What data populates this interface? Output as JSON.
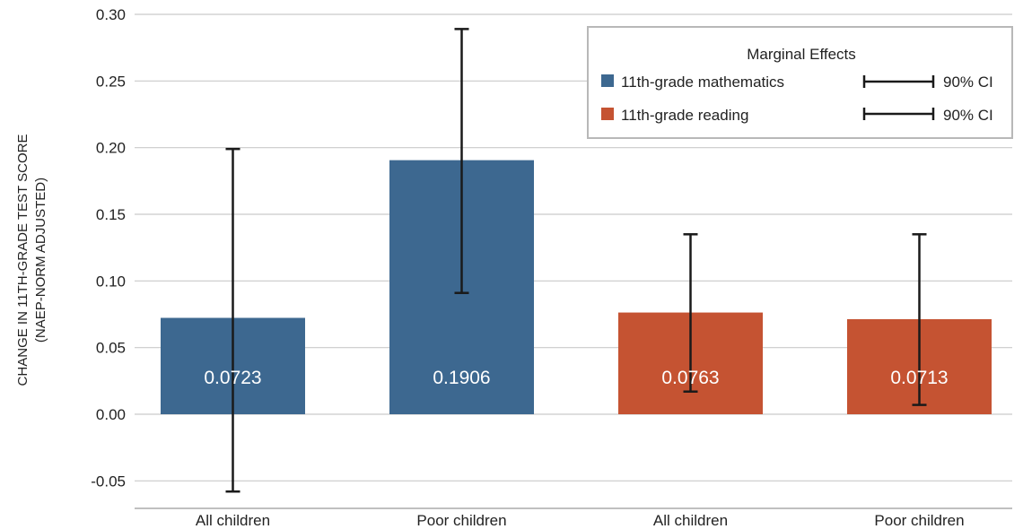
{
  "chart_data": {
    "type": "bar",
    "title": "",
    "xlabel": "",
    "ylabel_lines": [
      "CHANGE IN 11TH-GRADE TEST SCORE",
      "(NAEP-NORM ADJUSTED)"
    ],
    "ylim": [
      -0.07,
      0.3
    ],
    "yticks": [
      -0.05,
      0.0,
      0.05,
      0.1,
      0.15,
      0.2,
      0.25,
      0.3
    ],
    "ytick_labels": [
      "-0.05",
      "0.00",
      "0.05",
      "0.10",
      "0.15",
      "0.20",
      "0.25",
      "0.30"
    ],
    "grid": true,
    "categories": [
      "All children",
      "Poor children",
      "All children",
      "Poor children"
    ],
    "bars": [
      {
        "series": "11th-grade mathematics",
        "category": "All children",
        "value": 0.0723,
        "label": "0.0723",
        "ci_low": -0.058,
        "ci_high": 0.199
      },
      {
        "series": "11th-grade mathematics",
        "category": "Poor children",
        "value": 0.1906,
        "label": "0.1906",
        "ci_low": 0.091,
        "ci_high": 0.289
      },
      {
        "series": "11th-grade reading",
        "category": "All children",
        "value": 0.0763,
        "label": "0.0763",
        "ci_low": 0.017,
        "ci_high": 0.135
      },
      {
        "series": "11th-grade reading",
        "category": "Poor children",
        "value": 0.0713,
        "label": "0.0713",
        "ci_low": 0.007,
        "ci_high": 0.135
      }
    ],
    "series": [
      {
        "name": "11th-grade mathematics",
        "color": "#3d6890"
      },
      {
        "name": "11th-grade reading",
        "color": "#c55332"
      }
    ],
    "legend": {
      "title": "Marginal Effects",
      "placement": "top-right",
      "ci_label": "90% CI"
    }
  }
}
